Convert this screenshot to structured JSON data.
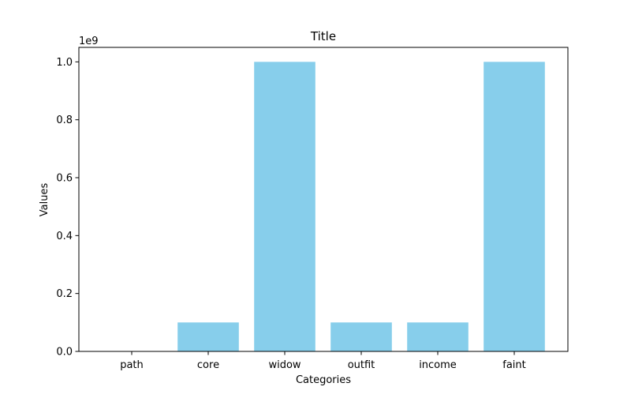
{
  "chart_data": {
    "type": "bar",
    "title": "Title",
    "xlabel": "Categories",
    "ylabel": "Values",
    "scale_label": "1e9",
    "categories": [
      "path",
      "core",
      "widow",
      "outfit",
      "income",
      "faint"
    ],
    "values": [
      1000000,
      100000000,
      1000000000,
      100000000,
      100000000,
      1000000000
    ],
    "ylim": [
      0,
      1050000000
    ],
    "y_ticks": [
      0,
      200000000,
      400000000,
      600000000,
      800000000,
      1000000000
    ],
    "y_tick_labels": [
      "0.0",
      "0.2",
      "0.4",
      "0.6",
      "0.8",
      "1.0"
    ],
    "bar_color": "#87CEEB",
    "grid": false,
    "legend": "none"
  }
}
